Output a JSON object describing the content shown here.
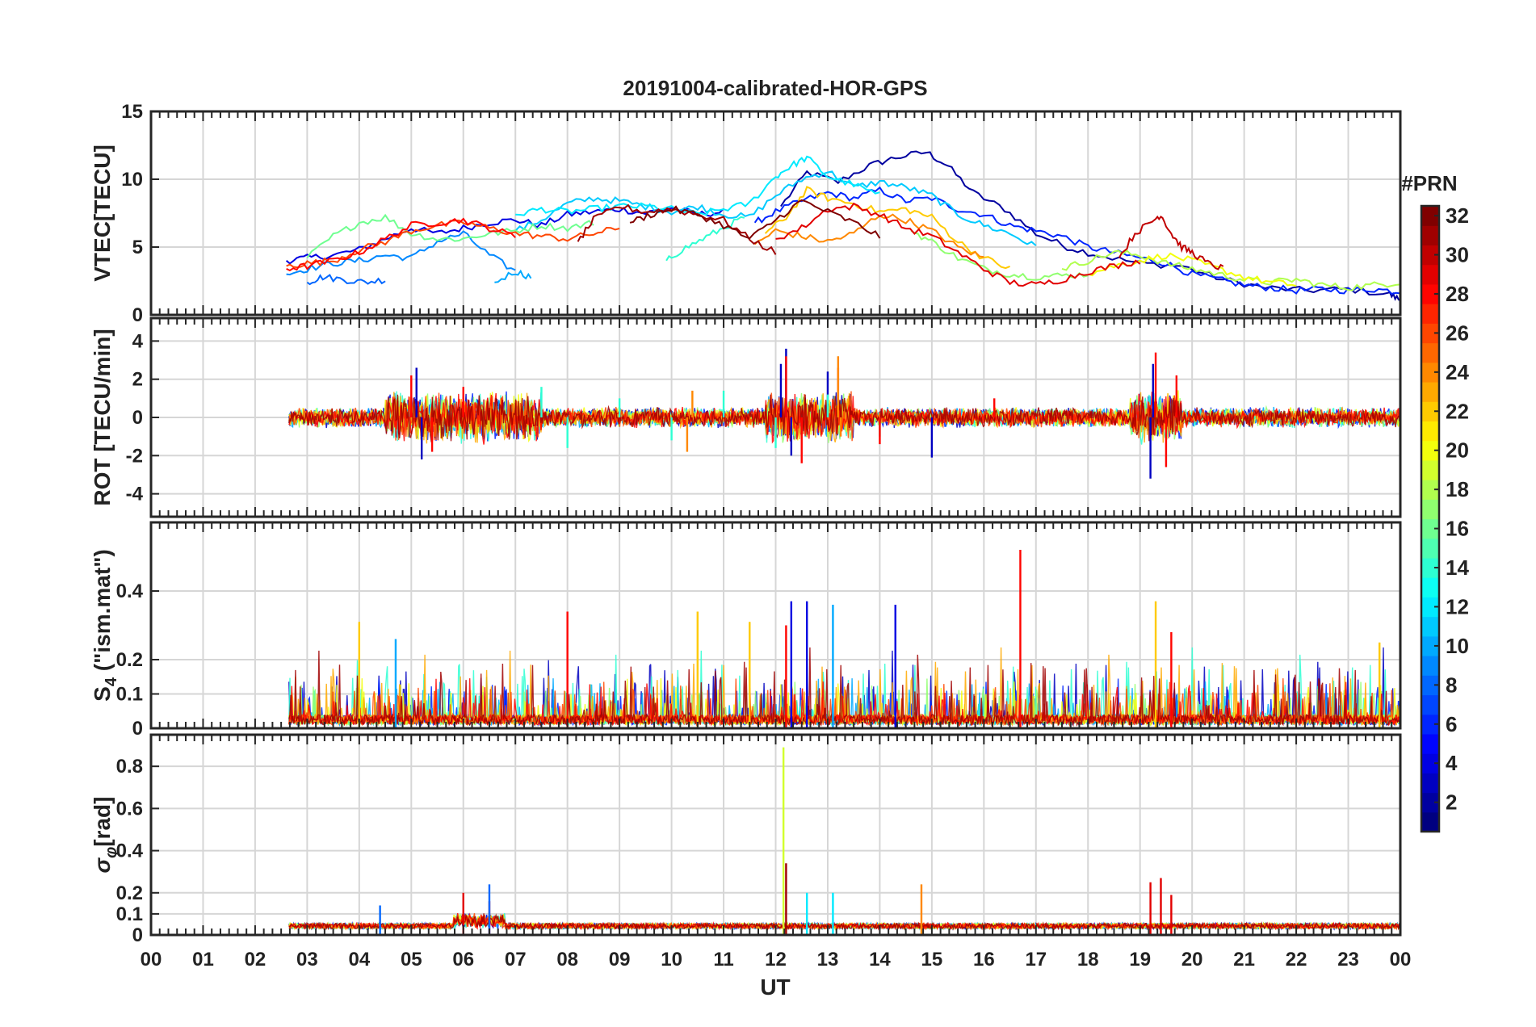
{
  "chart_data": {
    "type": "line",
    "title": "20191004-calibrated-HOR-GPS",
    "xlabel": "UT",
    "x_tick_labels": [
      "00",
      "01",
      "02",
      "03",
      "04",
      "05",
      "06",
      "07",
      "08",
      "09",
      "10",
      "11",
      "12",
      "13",
      "14",
      "15",
      "16",
      "17",
      "18",
      "19",
      "20",
      "21",
      "22",
      "23",
      "00"
    ],
    "xlim": [
      0,
      24
    ],
    "colorbar": {
      "title": "#PRN",
      "ticks": [
        "2",
        "4",
        "6",
        "8",
        "10",
        "12",
        "14",
        "16",
        "18",
        "20",
        "22",
        "24",
        "26",
        "28",
        "30",
        "32"
      ],
      "range": [
        1,
        32
      ]
    },
    "panels": [
      {
        "name": "vtec",
        "ylabel": "VTEC[TECU]",
        "ylim": [
          0,
          15
        ],
        "yticks": [
          0,
          5,
          10,
          15
        ],
        "y_tick_labels": [
          "0",
          "5",
          "10",
          "15"
        ],
        "series": [
          {
            "prn": 2,
            "x": [
              12.1,
              12.6,
              13.2,
              13.8,
              14.3,
              14.9,
              15.3,
              15.8,
              16.4,
              17.0,
              17.6,
              18.2,
              19.0,
              19.8,
              20.6,
              21.4,
              22.2,
              23.0,
              23.8,
              24.0
            ],
            "y": [
              8.0,
              10.5,
              9.8,
              11.0,
              11.6,
              12.0,
              11.0,
              9.0,
              7.8,
              6.0,
              5.0,
              4.4,
              3.8,
              3.6,
              2.6,
              2.0,
              1.8,
              1.9,
              1.5,
              1.1
            ]
          },
          {
            "prn": 4,
            "x": [
              2.6,
              3.0,
              3.5,
              4.0,
              4.5,
              5.0,
              5.5,
              6.0,
              6.5,
              7.0,
              7.5,
              8.0,
              8.5,
              9.0,
              9.5,
              10.0,
              10.5,
              11.0
            ],
            "y": [
              4.0,
              4.2,
              4.4,
              4.8,
              5.6,
              6.4,
              6.0,
              6.4,
              6.8,
              7.0,
              6.6,
              7.4,
              7.6,
              7.8,
              7.5,
              7.9,
              7.4,
              7.6
            ]
          },
          {
            "prn": 6,
            "x": [
              11.6,
              12.0,
              12.5,
              13.0,
              13.5,
              14.0,
              14.5,
              15.0,
              15.5,
              16.0,
              16.5,
              17.0,
              17.5,
              18.0,
              18.5,
              19.0,
              19.5,
              20.0,
              20.5,
              21.0,
              21.5,
              22.0,
              22.5,
              23.0,
              23.5,
              24.0
            ],
            "y": [
              6.8,
              7.6,
              8.4,
              9.0,
              8.6,
              9.2,
              8.4,
              8.6,
              7.8,
              7.4,
              6.6,
              6.2,
              5.8,
              5.0,
              4.6,
              4.2,
              3.8,
              3.0,
              2.6,
              2.2,
              2.0,
              1.8,
              1.9,
              1.8,
              1.9,
              1.7
            ]
          },
          {
            "prn": 8,
            "x": [
              3.0,
              3.3,
              3.7,
              4.1,
              4.5
            ],
            "y": [
              2.4,
              2.8,
              2.6,
              2.4,
              2.6
            ]
          },
          {
            "prn": 9,
            "x": [
              2.6,
              3.0,
              3.5,
              4.0,
              4.5,
              5.0,
              5.5,
              6.0,
              6.5,
              7.0
            ],
            "y": [
              3.0,
              3.4,
              3.8,
              4.0,
              4.4,
              4.2,
              5.4,
              6.0,
              4.4,
              3.2
            ]
          },
          {
            "prn": 10,
            "x": [
              6.6,
              7.0,
              7.3
            ],
            "y": [
              2.4,
              3.2,
              2.8
            ]
          },
          {
            "prn": 11,
            "x": [
              7.0,
              7.5,
              8.0,
              8.5,
              9.0,
              9.5,
              10.0,
              10.5,
              11.0,
              11.5,
              12.0,
              12.5,
              13.0,
              13.5,
              14.0,
              14.5,
              15.0,
              15.5,
              16.0,
              16.5,
              17.0
            ],
            "y": [
              6.2,
              7.0,
              8.2,
              8.6,
              8.4,
              8.0,
              7.6,
              8.0,
              7.4,
              7.2,
              8.8,
              10.0,
              10.6,
              9.4,
              9.8,
              9.4,
              8.8,
              7.4,
              6.6,
              6.0,
              5.0
            ]
          },
          {
            "prn": 12,
            "x": [
              7.0,
              7.5,
              8.0,
              8.5,
              9.0,
              9.5,
              10.0,
              10.5,
              11.0,
              11.5,
              12.0,
              12.3,
              12.6,
              13.0,
              13.5,
              14.0
            ],
            "y": [
              7.4,
              7.8,
              7.6,
              7.8,
              8.0,
              8.0,
              7.8,
              7.4,
              7.8,
              8.2,
              10.2,
              11.0,
              11.6,
              10.2,
              9.6,
              8.8
            ]
          },
          {
            "prn": 14,
            "x": [
              9.9,
              10.2,
              10.6,
              11.0,
              11.4
            ],
            "y": [
              4.0,
              4.8,
              5.6,
              6.4,
              7.2
            ]
          },
          {
            "prn": 16,
            "x": [
              3.0,
              3.5,
              4.0,
              4.5,
              5.0,
              5.5,
              6.0,
              6.5,
              7.0,
              7.5,
              8.0,
              8.5
            ],
            "y": [
              4.2,
              5.8,
              6.8,
              7.2,
              6.0,
              5.6,
              5.6,
              6.0,
              6.2,
              6.6,
              6.4,
              6.8
            ]
          },
          {
            "prn": 17,
            "x": [
              14.6,
              15.0,
              15.5,
              16.0,
              16.5,
              17.0,
              17.5,
              18.0
            ],
            "y": [
              6.2,
              5.4,
              4.2,
              3.4,
              3.0,
              2.8,
              2.9,
              3.0
            ]
          },
          {
            "prn": 18,
            "x": [
              17.5,
              18.0,
              18.5,
              19.0,
              19.5,
              20.0,
              20.5,
              21.0,
              21.5,
              22.0,
              22.5,
              23.0,
              23.5,
              24.0
            ],
            "y": [
              3.4,
              4.0,
              4.6,
              4.4,
              3.8,
              3.4,
              3.0,
              2.6,
              2.4,
              2.6,
              2.2,
              2.0,
              2.2,
              2.4
            ]
          },
          {
            "prn": 20,
            "x": [
              18.0,
              18.5,
              19.0,
              19.5,
              20.0,
              20.5,
              21.0,
              21.5,
              22.0
            ],
            "y": [
              3.0,
              3.6,
              4.0,
              4.4,
              4.0,
              3.4,
              2.8,
              2.4,
              2.2
            ]
          },
          {
            "prn": 22,
            "x": [
              11.8,
              12.2,
              12.6,
              13.0,
              13.5,
              14.0,
              14.5,
              15.0,
              15.5,
              16.0,
              16.5
            ],
            "y": [
              6.0,
              7.2,
              9.2,
              8.6,
              8.2,
              7.6,
              7.8,
              7.2,
              5.4,
              4.2,
              3.4
            ]
          },
          {
            "prn": 24,
            "x": [
              11.6,
              12.0,
              12.5,
              13.0,
              13.5,
              14.0,
              14.5,
              15.0,
              15.5,
              16.0
            ],
            "y": [
              5.2,
              6.2,
              5.8,
              5.4,
              6.0,
              7.4,
              7.0,
              6.2,
              5.0,
              4.2
            ]
          },
          {
            "prn": 26,
            "x": [
              2.6,
              3.0,
              3.5,
              4.0,
              4.5,
              5.0,
              5.5,
              6.0,
              6.5,
              7.0,
              7.5,
              8.0,
              8.5,
              9.0
            ],
            "y": [
              3.6,
              3.8,
              4.0,
              4.8,
              5.4,
              6.2,
              6.6,
              6.8,
              6.4,
              6.0,
              5.8,
              5.6,
              6.0,
              6.4
            ]
          },
          {
            "prn": 28,
            "x": [
              2.6,
              3.0,
              3.5,
              4.0,
              4.5,
              5.0,
              5.5,
              6.0,
              6.5,
              7.0
            ],
            "y": [
              3.4,
              3.6,
              4.0,
              4.6,
              5.6,
              6.6,
              6.8,
              7.0,
              6.4,
              5.8
            ]
          },
          {
            "prn": 29,
            "x": [
              12.0,
              12.5,
              13.0,
              13.5,
              14.0,
              14.5,
              15.0,
              15.5,
              16.0,
              16.5,
              17.0,
              17.5,
              18.0,
              18.5,
              19.0
            ],
            "y": [
              5.6,
              6.4,
              7.8,
              8.0,
              7.4,
              6.4,
              5.8,
              4.6,
              3.4,
              2.4,
              2.2,
              2.6,
              3.2,
              3.6,
              4.0
            ]
          },
          {
            "prn": 30,
            "x": [
              18.6,
              18.9,
              19.2,
              19.4,
              19.6,
              19.8,
              20.0,
              20.3,
              20.6
            ],
            "y": [
              4.2,
              6.0,
              6.8,
              7.4,
              6.0,
              5.0,
              4.6,
              3.8,
              3.4
            ]
          },
          {
            "prn": 31,
            "x": [
              8.2,
              8.5,
              9.0,
              9.5,
              10.0,
              10.5,
              11.0,
              11.5,
              12.0
            ],
            "y": [
              5.4,
              7.0,
              8.0,
              7.6,
              7.8,
              7.4,
              7.0,
              5.6,
              4.6
            ]
          },
          {
            "prn": 32,
            "x": [
              9.2,
              9.6,
              10.0,
              10.5,
              11.0,
              11.5,
              12.0,
              12.5,
              13.0,
              13.5,
              14.0
            ],
            "y": [
              6.8,
              7.4,
              7.8,
              7.4,
              6.6,
              5.6,
              7.0,
              8.4,
              7.6,
              6.8,
              5.8
            ]
          }
        ]
      },
      {
        "name": "rot",
        "ylabel": "ROT [TECU/min]",
        "ylim": [
          -5.2,
          5.2
        ],
        "yticks": [
          -4,
          -2,
          0,
          2,
          4
        ],
        "y_tick_labels": [
          "-4",
          "-2",
          "0",
          "2",
          "4"
        ],
        "series": [
          {
            "prn": 3,
            "x": [
              2.6,
              5.1,
              5.2,
              5.3,
              12.1,
              12.2,
              12.3,
              13.0,
              15.0,
              19.0,
              19.2,
              19.25,
              19.4
            ],
            "y": [
              0,
              2.6,
              -2.2,
              0,
              2.8,
              3.6,
              -2.0,
              2.4,
              -2.1,
              0,
              -3.2,
              2.8,
              0
            ]
          },
          {
            "prn": 14,
            "x": [
              7.5,
              8.0,
              9.0,
              10.0,
              11.0,
              12.0,
              13.0,
              14.0
            ],
            "y": [
              1.6,
              -1.6,
              1.0,
              -1.2,
              1.4,
              -1.6,
              1.2,
              -1.0
            ]
          },
          {
            "prn": 28,
            "x": [
              5.0,
              5.4,
              6.0,
              12.2,
              12.5,
              13.2,
              14.0,
              16.2,
              19.3,
              19.5,
              19.7
            ],
            "y": [
              2.2,
              -1.8,
              1.6,
              3.2,
              -2.4,
              2.6,
              -1.4,
              1.0,
              3.4,
              -2.6,
              2.2
            ]
          },
          {
            "prn": 24,
            "x": [
              10.3,
              10.4,
              13.2,
              13.25
            ],
            "y": [
              -1.8,
              1.4,
              3.2,
              -1.0
            ]
          }
        ]
      },
      {
        "name": "s4",
        "ylabel": "S4 (\"ism.mat\")",
        "ylabel_main": "S",
        "ylabel_sub": "4",
        "ylabel_rest": " (\"ism.mat\")",
        "ylim": [
          0,
          0.6
        ],
        "yticks": [
          0,
          0.1,
          0.2,
          0.4
        ],
        "y_tick_labels": [
          "0",
          "0.1",
          "0.2",
          "0.4"
        ],
        "series": [
          {
            "prn": 22,
            "x": [
              4.0,
              10.5,
              11.5,
              19.3,
              23.6
            ],
            "y": [
              0.31,
              0.34,
              0.31,
              0.37,
              0.25
            ]
          },
          {
            "prn": 28,
            "x": [
              8.0,
              12.2,
              16.7,
              19.6
            ],
            "y": [
              0.34,
              0.3,
              0.52,
              0.28
            ]
          },
          {
            "prn": 4,
            "x": [
              12.3,
              12.6,
              14.3
            ],
            "y": [
              0.37,
              0.37,
              0.36
            ]
          },
          {
            "prn": 10,
            "x": [
              4.7,
              13.1
            ],
            "y": [
              0.26,
              0.36
            ]
          }
        ]
      },
      {
        "name": "sigma_phi",
        "ylabel": "σφ[rad]",
        "ylabel_main": "σ",
        "ylabel_sub": "φ",
        "ylabel_rest": "[rad]",
        "ylim": [
          0,
          0.95
        ],
        "yticks": [
          0,
          0.1,
          0.2,
          0.4,
          0.6,
          0.8
        ],
        "y_tick_labels": [
          "0",
          "0.1",
          "0.2",
          "0.4",
          "0.6",
          "0.8"
        ],
        "series": [
          {
            "prn": 19,
            "x": [
              12.15
            ],
            "y": [
              0.89
            ]
          },
          {
            "prn": 31,
            "x": [
              12.2
            ],
            "y": [
              0.34
            ]
          },
          {
            "prn": 29,
            "x": [
              6.0,
              6.5,
              19.2,
              19.4,
              19.6
            ],
            "y": [
              0.2,
              0.16,
              0.25,
              0.27,
              0.19
            ]
          },
          {
            "prn": 24,
            "x": [
              14.8
            ],
            "y": [
              0.24
            ]
          },
          {
            "prn": 8,
            "x": [
              6.5,
              4.4
            ],
            "y": [
              0.24,
              0.14
            ]
          },
          {
            "prn": 12,
            "x": [
              12.6,
              13.1
            ],
            "y": [
              0.2,
              0.2
            ]
          }
        ]
      }
    ]
  }
}
